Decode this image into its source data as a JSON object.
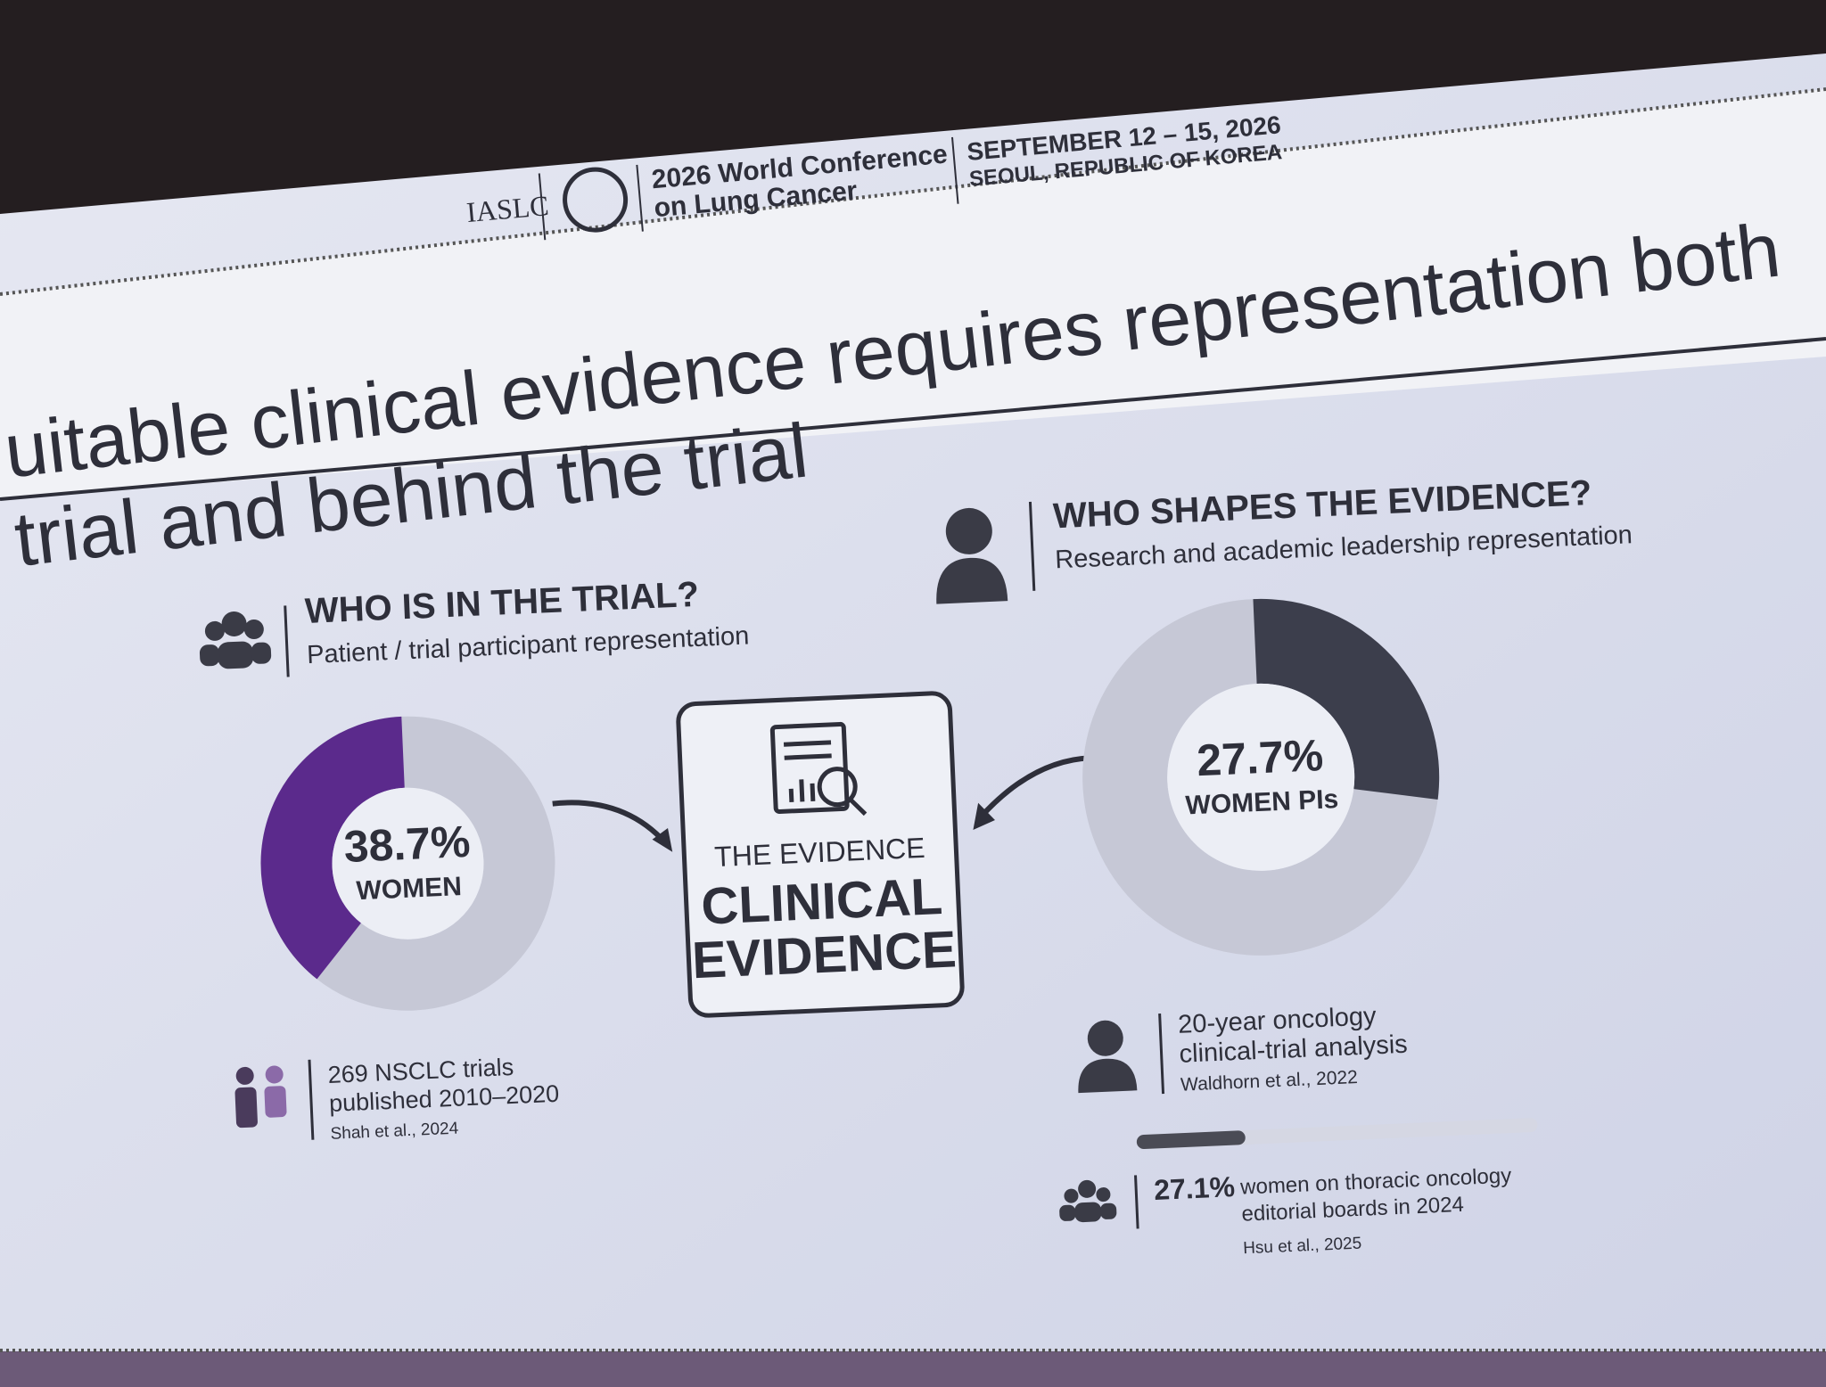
{
  "header": {
    "org": "IASLC",
    "conference": [
      "2026 World Conference",
      "on Lung Cancer"
    ],
    "dates": "SEPTEMBER 12 – 15, 2026",
    "location": "SEOUL, REPUBLIC OF KOREA"
  },
  "title": [
    "uitable clinical evidence requires representation both",
    "trial and behind the trial"
  ],
  "left": {
    "heading": "WHO IS IN THE TRIAL?",
    "subheading": "Patient / trial participant representation",
    "donut": {
      "value": 38.7,
      "label": "38.7%",
      "caption": "WOMEN",
      "color": "#5b2a8c"
    },
    "note": [
      "269 NSCLC trials",
      "published 2010–2020"
    ],
    "source": "Shah et al., 2024"
  },
  "center": {
    "kicker": "THE EVIDENCE",
    "title": [
      "CLINICAL",
      "EVIDENCE"
    ]
  },
  "right": {
    "heading": "WHO SHAPES THE EVIDENCE?",
    "subheading": "Research and academic leadership representation",
    "donut": {
      "value": 27.7,
      "label": "27.7%",
      "caption": "WOMEN PIs",
      "color": "#3c3e4c"
    },
    "note": [
      "20-year oncology",
      "clinical-trial analysis"
    ],
    "source": "Waldhorn et al., 2022",
    "stat": {
      "value": 27.1,
      "label": "27.1%",
      "text": [
        "women on thoracic oncology",
        "editorial boards in 2024"
      ],
      "source": "Hsu et al., 2025",
      "color": "#4a4b55"
    }
  }
}
